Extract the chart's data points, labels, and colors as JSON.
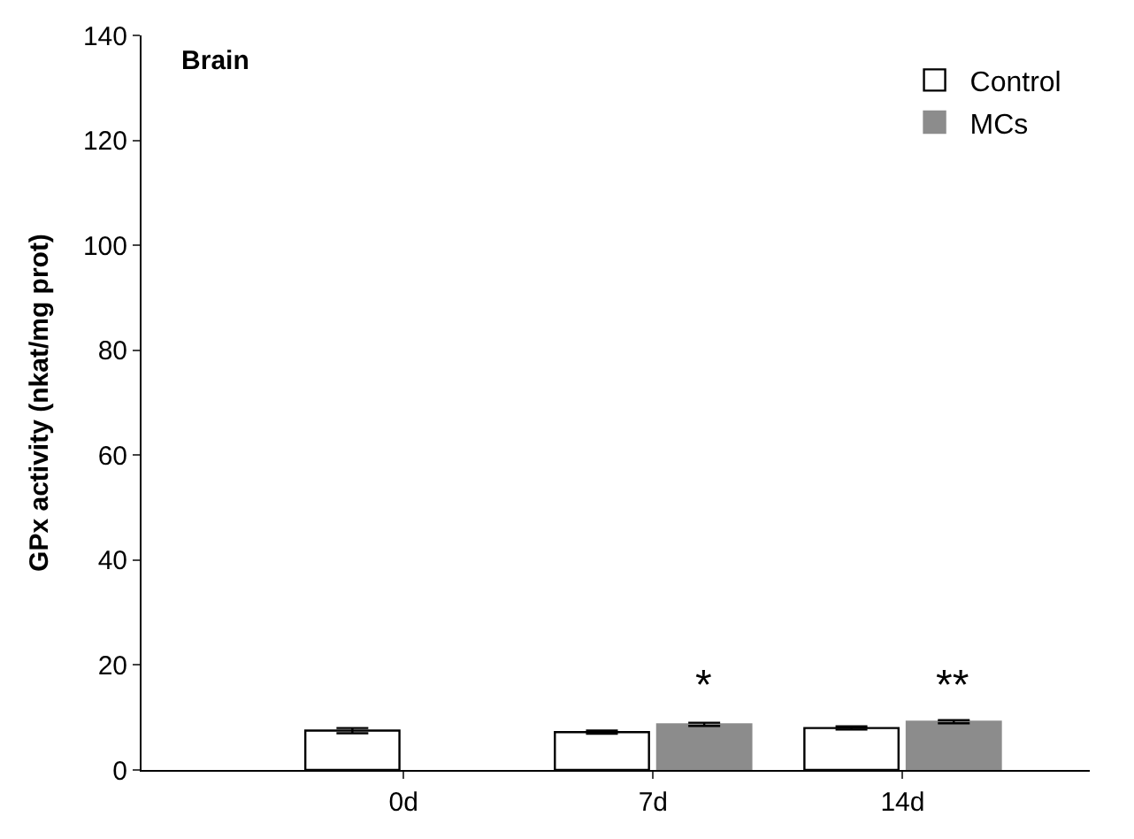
{
  "chart_data": {
    "type": "bar",
    "title": "Brain",
    "ylabel": "GPx activity (nkat/mg prot)",
    "categories": [
      "0d",
      "7d",
      "14d"
    ],
    "series": [
      {
        "name": "Control",
        "color": "#ffffff",
        "values": [
          7.5,
          7.2,
          8.0
        ],
        "errors": [
          0.5,
          0.3,
          0.3
        ]
      },
      {
        "name": "MCs",
        "color": "#8c8c8c",
        "values": [
          null,
          8.7,
          9.2
        ],
        "errors": [
          null,
          0.3,
          0.3
        ]
      }
    ],
    "ylim": [
      0,
      140
    ],
    "yticks": [
      0,
      20,
      40,
      60,
      80,
      100,
      120,
      140
    ],
    "annotations": [
      "*",
      "**"
    ],
    "legend": "top right"
  }
}
